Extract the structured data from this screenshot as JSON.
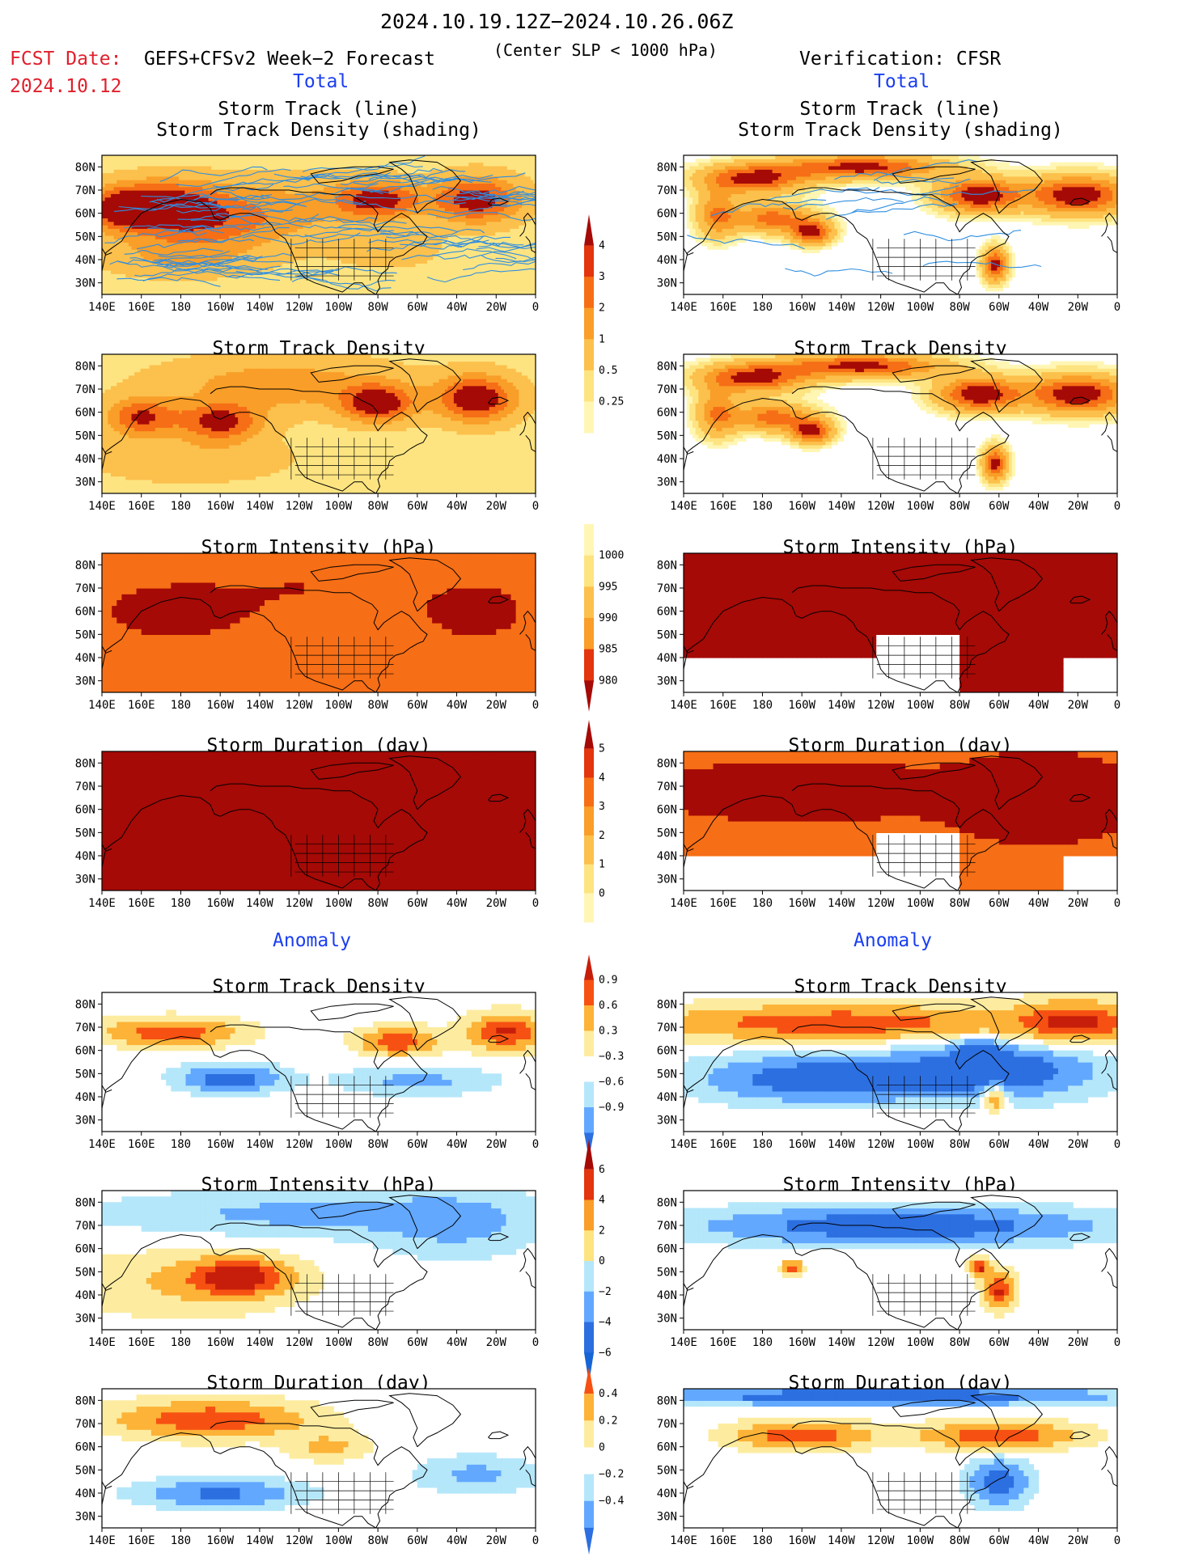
{
  "header": {
    "date_range": "2024.10.19.12Z−2024.10.26.06Z",
    "fcst_label": "FCST Date:",
    "model": "GEFS+CFSv2 Week−2 Forecast",
    "condition": "(Center SLP < 1000 hPa)",
    "verification": "Verification: CFSR",
    "fcst_date": "2024.10.12",
    "total_left": "Total",
    "total_right": "Total",
    "anomaly_left": "Anomaly",
    "anomaly_right": "Anomaly"
  },
  "colors": {
    "seq": [
      "#fff6b4",
      "#fde481",
      "#fcc04c",
      "#f99e28",
      "#f66e16",
      "#e3350e",
      "#a50a06"
    ],
    "anom": [
      "#2c6fe0",
      "#62a8ff",
      "#b5e7fa",
      "#ffffff",
      "#fdeca0",
      "#fcb337",
      "#f65112",
      "#c71e0b"
    ],
    "track_line": "#2f8ee0",
    "coast": "#000000",
    "title_red": "#e0202c",
    "title_blue": "#1a3ef0"
  },
  "chart_data": {
    "type": "heatmap",
    "map": {
      "x_ticks": [
        "140E",
        "160E",
        "180",
        "160W",
        "140W",
        "120W",
        "100W",
        "80W",
        "60W",
        "40W",
        "20W",
        "0"
      ],
      "y_ticks": [
        "80N",
        "70N",
        "60N",
        "50N",
        "40N",
        "30N"
      ],
      "lon_range": [
        140,
        360
      ],
      "lat_range": [
        25,
        85
      ]
    },
    "colorbars": [
      {
        "id": "track_density",
        "labels": [
          "4",
          "3",
          "2",
          "1",
          "0.5",
          "0.25"
        ]
      },
      {
        "id": "intensity",
        "labels": [
          "1000",
          "995",
          "990",
          "985",
          "980"
        ]
      },
      {
        "id": "duration",
        "labels": [
          "5",
          "4",
          "3",
          "2",
          "1",
          "0"
        ]
      },
      {
        "id": "anom_density",
        "labels": [
          "0.9",
          "0.6",
          "0.3",
          "−0.3",
          "−0.6",
          "−0.9"
        ]
      },
      {
        "id": "anom_intensity",
        "labels": [
          "6",
          "4",
          "2",
          "0",
          "−2",
          "−4",
          "−6"
        ]
      },
      {
        "id": "anom_duration",
        "labels": [
          "0.4",
          "0.2",
          "0",
          "−0.2",
          "−0.4"
        ]
      }
    ],
    "panels": [
      {
        "title": [
          "Storm Track (line)",
          "Storm Track Density (shading)"
        ],
        "column": "forecast",
        "section": "Total",
        "blobs": [
          [
            150,
            62,
            16,
            8,
            3
          ],
          [
            170,
            65,
            30,
            10,
            3.5
          ],
          [
            185,
            55,
            40,
            12,
            2.5
          ],
          [
            230,
            62,
            40,
            15,
            1.5
          ],
          [
            280,
            66,
            22,
            8,
            4
          ],
          [
            330,
            66,
            22,
            10,
            4.2
          ],
          [
            180,
            40,
            40,
            8,
            1.2
          ],
          [
            285,
            45,
            25,
            8,
            1.2
          ]
        ],
        "base": 0.6,
        "tracks": true
      },
      {
        "title": [
          "Storm Track (line)",
          "Storm Track Density (shading)"
        ],
        "column": "verification",
        "section": "Total",
        "blobs": [
          [
            175,
            75,
            25,
            6,
            4.5
          ],
          [
            230,
            80,
            40,
            5,
            4.5
          ],
          [
            205,
            52,
            10,
            5,
            4.5
          ],
          [
            185,
            58,
            20,
            6,
            3.5
          ],
          [
            290,
            68,
            20,
            7,
            5
          ],
          [
            340,
            68,
            25,
            8,
            5
          ],
          [
            298,
            38,
            6,
            7,
            4.5
          ],
          [
            157,
            60,
            10,
            10,
            3
          ]
        ],
        "base": 0,
        "tracks": true
      },
      {
        "title": [
          "Storm Track Density"
        ],
        "column": "forecast",
        "section": "Total",
        "blobs": [
          [
            160,
            58,
            18,
            8,
            3.5
          ],
          [
            200,
            56,
            20,
            8,
            3.8
          ],
          [
            280,
            64,
            18,
            8,
            4.2
          ],
          [
            330,
            66,
            20,
            10,
            4.5
          ],
          [
            230,
            72,
            60,
            12,
            2
          ],
          [
            185,
            40,
            50,
            10,
            1.2
          ]
        ],
        "base": 0.6
      },
      {
        "title": [
          "Storm Track Density"
        ],
        "column": "verification",
        "section": "Total",
        "blobs": [
          [
            175,
            75,
            25,
            6,
            4.5
          ],
          [
            230,
            80,
            40,
            5,
            4.5
          ],
          [
            205,
            52,
            10,
            5,
            4.5
          ],
          [
            185,
            58,
            20,
            6,
            3.5
          ],
          [
            290,
            68,
            20,
            7,
            5
          ],
          [
            340,
            68,
            25,
            8,
            5
          ],
          [
            298,
            38,
            6,
            7,
            4.5
          ],
          [
            157,
            60,
            10,
            10,
            3
          ]
        ],
        "base": 0
      },
      {
        "title": [
          "Storm Intensity (hPa)"
        ],
        "column": "forecast",
        "section": "Total",
        "blocky": true,
        "seq": "intensity",
        "blobs": [
          [
            175,
            60,
            30,
            10,
            1.5
          ],
          [
            330,
            60,
            25,
            12,
            1.2
          ],
          [
            240,
            70,
            60,
            20,
            0.6
          ]
        ],
        "base": 3.4
      },
      {
        "title": [
          "Storm Intensity (hPa)"
        ],
        "column": "verification",
        "section": "Total",
        "blocky": true,
        "seq": "intensity",
        "blobs": [
          [
            185,
            68,
            30,
            8,
            1.6
          ],
          [
            300,
            68,
            40,
            9,
            1.8
          ],
          [
            340,
            60,
            20,
            12,
            1.8
          ],
          [
            210,
            55,
            8,
            4,
            1.8
          ]
        ],
        "base": 4.8,
        "mask": true
      },
      {
        "title": [
          "Storm Duration (day)"
        ],
        "column": "forecast",
        "section": "Total",
        "blocky": true,
        "seq": "duration",
        "blobs": [
          [
            240,
            60,
            100,
            30,
            4.6
          ]
        ],
        "base": 3.9
      },
      {
        "title": [
          "Storm Duration (day)"
        ],
        "column": "verification",
        "section": "Total",
        "blocky": true,
        "seq": "duration",
        "blobs": [
          [
            200,
            68,
            60,
            10,
            4.6
          ],
          [
            320,
            65,
            40,
            15,
            4.8
          ]
        ],
        "base": 3.2,
        "mask": true
      },
      {
        "title": [
          "Storm Track Density"
        ],
        "column": "forecast",
        "section": "Anomaly",
        "blocky": true,
        "anom": true,
        "blobs": [
          [
            175,
            68,
            35,
            6,
            6
          ],
          [
            290,
            64,
            20,
            6,
            6
          ],
          [
            345,
            68,
            20,
            8,
            6.5
          ],
          [
            205,
            48,
            25,
            6,
            -6
          ],
          [
            300,
            47,
            40,
            6,
            -3
          ]
        ],
        "base": 0
      },
      {
        "title": [
          "Storm Track Density"
        ],
        "column": "verification",
        "section": "Anomaly",
        "blocky": true,
        "anom": true,
        "blobs": [
          [
            220,
            72,
            100,
            8,
            6
          ],
          [
            340,
            72,
            30,
            10,
            6
          ],
          [
            210,
            48,
            60,
            10,
            -6.5
          ],
          [
            300,
            52,
            50,
            12,
            -6.5
          ],
          [
            298,
            40,
            6,
            6,
            6
          ],
          [
            290,
            60,
            10,
            4,
            -6
          ]
        ],
        "base": 0
      },
      {
        "title": [
          "Storm Intensity (hPa)"
        ],
        "column": "forecast",
        "section": "Anomaly",
        "blocky": true,
        "anom": true,
        "blobs": [
          [
            210,
            48,
            25,
            8,
            6.5
          ],
          [
            180,
            45,
            60,
            15,
            2.5
          ],
          [
            240,
            75,
            100,
            10,
            -3
          ],
          [
            320,
            70,
            40,
            15,
            -2.5
          ]
        ],
        "base": 0
      },
      {
        "title": [
          "Storm Intensity (hPa)"
        ],
        "column": "verification",
        "section": "Anomaly",
        "blocky": true,
        "anom": true,
        "blobs": [
          [
            250,
            70,
            100,
            8,
            -6.5
          ],
          [
            195,
            52,
            5,
            3,
            6.5
          ],
          [
            290,
            52,
            5,
            4,
            6.5
          ],
          [
            300,
            42,
            8,
            8,
            6.5
          ]
        ],
        "base": 0,
        "mask": true
      },
      {
        "title": [
          "Storm Duration (day)"
        ],
        "column": "forecast",
        "section": "Anomaly",
        "blocky": true,
        "anom": true,
        "blobs": [
          [
            195,
            72,
            50,
            8,
            6
          ],
          [
            255,
            60,
            20,
            6,
            3
          ],
          [
            200,
            40,
            40,
            6,
            -5
          ],
          [
            330,
            48,
            30,
            8,
            -3
          ]
        ],
        "base": 0
      },
      {
        "title": [
          "Storm Duration (day)"
        ],
        "column": "verification",
        "section": "Anomaly",
        "blocky": true,
        "anom": true,
        "blobs": [
          [
            240,
            82,
            120,
            4,
            -6.5
          ],
          [
            200,
            65,
            35,
            6,
            6
          ],
          [
            300,
            65,
            40,
            6,
            6
          ],
          [
            300,
            45,
            15,
            10,
            -6
          ]
        ],
        "base": 0,
        "mask": true
      }
    ]
  }
}
